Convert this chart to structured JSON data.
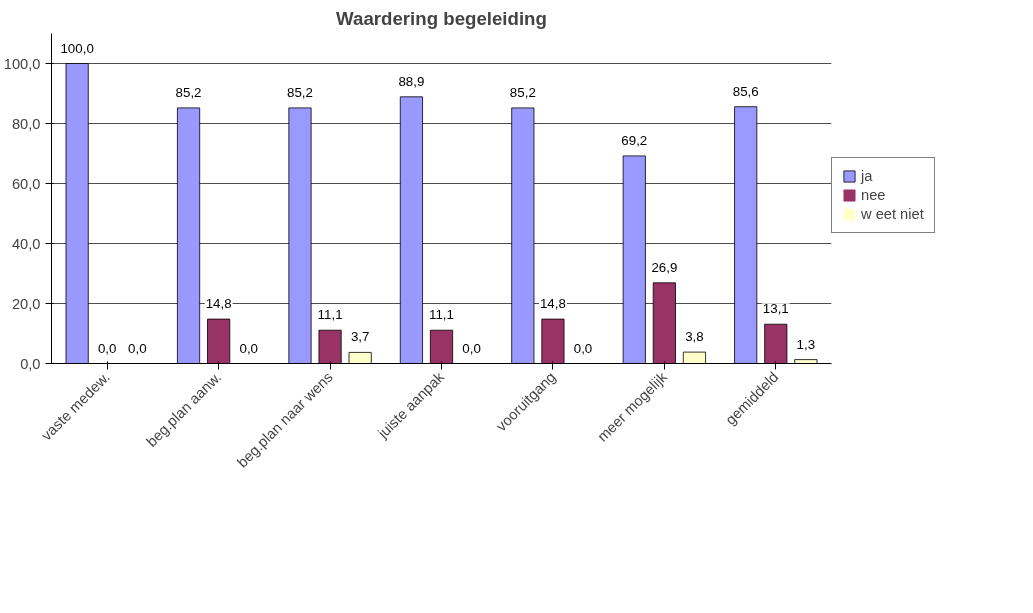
{
  "chart_data": {
    "type": "bar",
    "title": "Waardering begeleiding",
    "categories": [
      "vaste medew.",
      "beg.plan aanw.",
      "beg.plan naar wens",
      "juiste aanpak",
      "vooruitgang",
      "meer mogelijk",
      "gemiddeld"
    ],
    "series": [
      {
        "name": "ja",
        "color": "#9999ff",
        "values": [
          100.0,
          85.2,
          85.2,
          88.9,
          85.2,
          69.2,
          85.6
        ],
        "value_labels": [
          "100,0",
          "85,2",
          "85,2",
          "88,9",
          "85,2",
          "69,2",
          "85,6"
        ]
      },
      {
        "name": "nee",
        "color": "#993366",
        "values": [
          0.0,
          14.8,
          11.1,
          11.1,
          14.8,
          26.9,
          13.1
        ],
        "value_labels": [
          "0,0",
          "14,8",
          "11,1",
          "11,1",
          "14,8",
          "26,9",
          "13,1"
        ]
      },
      {
        "name": "w eet niet",
        "color": "#ffffcc",
        "values": [
          0.0,
          0.0,
          3.7,
          0.0,
          0.0,
          3.8,
          1.3
        ],
        "value_labels": [
          "0,0",
          "0,0",
          "3,7",
          "0,0",
          "0,0",
          "3,8",
          "1,3"
        ]
      }
    ],
    "ylim": [
      0,
      110
    ],
    "yticks": [
      {
        "value": 0,
        "label": "0,0"
      },
      {
        "value": 20,
        "label": "20,0"
      },
      {
        "value": 40,
        "label": "40,0"
      },
      {
        "value": 60,
        "label": "60,0"
      },
      {
        "value": 80,
        "label": "80,0"
      },
      {
        "value": 100,
        "label": "100,0"
      }
    ],
    "grid": "y",
    "legend": "right"
  }
}
